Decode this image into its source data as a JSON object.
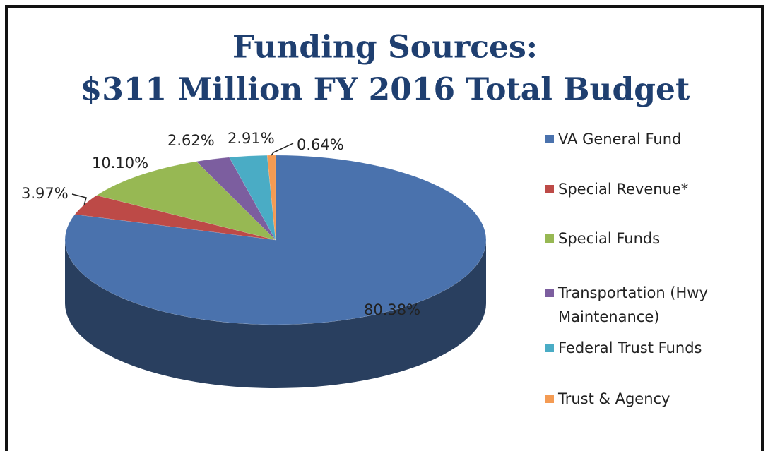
{
  "chart_data": {
    "type": "pie",
    "title": [
      "Funding Sources:",
      "$311 Million FY 2016 Total Budget"
    ],
    "categories": [
      "VA General Fund",
      "Special Revenue*",
      "Special Funds",
      "Transportation (Hwy Maintenance)",
      "Federal Trust Funds",
      "Trust & Agency"
    ],
    "values": [
      80.38,
      3.97,
      10.1,
      2.62,
      2.91,
      0.64
    ],
    "value_labels": [
      "80.38%",
      "3.97%",
      "10.10%",
      "2.62%",
      "2.91%",
      "0.64%"
    ],
    "colors": [
      "#4a72ad",
      "#bd4a47",
      "#97b853",
      "#7c5e9f",
      "#4aacc5",
      "#f49b53"
    ],
    "legend": "right"
  }
}
